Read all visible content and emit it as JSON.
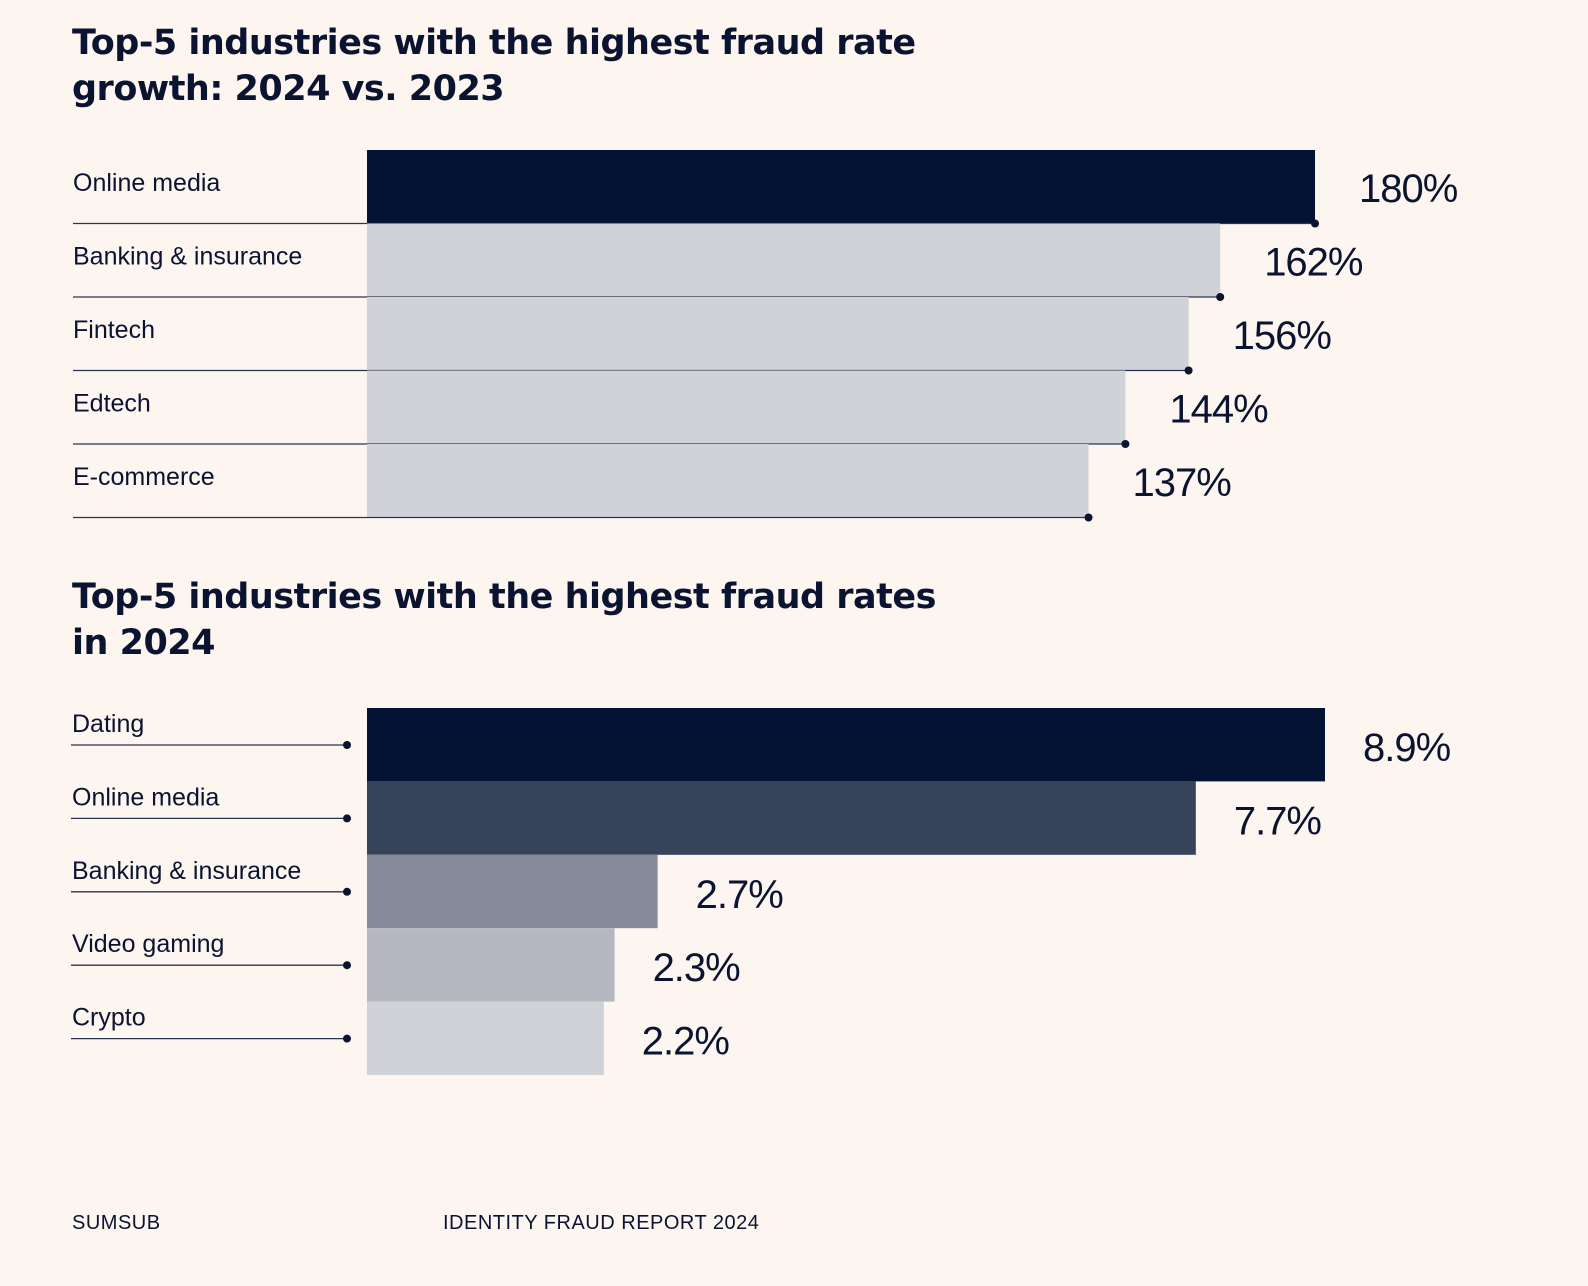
{
  "chart_data": [
    {
      "type": "bar",
      "orientation": "horizontal",
      "title": "Top-5 industries with the highest fraud rate growth: 2024 vs. 2023",
      "categories": [
        "Online media",
        "Banking & insurance",
        "Fintech",
        "Edtech",
        "E-commerce"
      ],
      "values": [
        180,
        162,
        156,
        144,
        137
      ],
      "value_labels": [
        "180%",
        "162%",
        "156%",
        "144%",
        "137%"
      ],
      "unit": "%",
      "xlim": [
        0,
        180
      ],
      "colors": [
        "#041233",
        "#cfd2d7",
        "#cfd2d7",
        "#cfd2d7",
        "#cfd2d7"
      ],
      "grid": false,
      "legend": "none"
    },
    {
      "type": "bar",
      "orientation": "horizontal",
      "title": "Top-5 industries with the highest fraud rates in 2024",
      "categories": [
        "Dating",
        "Online media",
        "Banking & insurance",
        "Video gaming",
        "Crypto"
      ],
      "values": [
        8.9,
        7.7,
        2.7,
        2.3,
        2.2
      ],
      "value_labels": [
        "8.9%",
        "7.7%",
        "2.7%",
        "2.3%",
        "2.2%"
      ],
      "unit": "%",
      "xlim": [
        0,
        8.9
      ],
      "colors": [
        "#041233",
        "#37435b",
        "#858b9a",
        "#b5b8c0",
        "#cfd2d7"
      ],
      "grid": false,
      "legend": "none"
    }
  ],
  "footer": {
    "brand": "SUMSUB",
    "report": "IDENTITY FRAUD REPORT 2024"
  },
  "colors": {
    "background": "#fdf5f0",
    "text": "#0a1330",
    "line": "#2a3550"
  }
}
